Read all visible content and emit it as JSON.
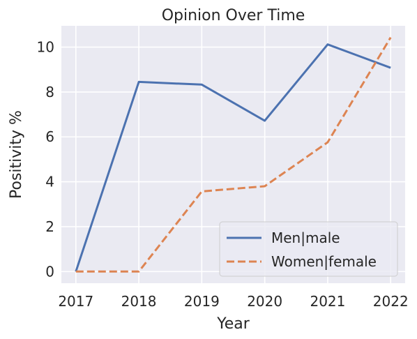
{
  "chart_data": {
    "type": "line",
    "title": "Opinion Over Time",
    "xlabel": "Year",
    "ylabel": "Positivity %",
    "x": [
      2017,
      2018,
      2019,
      2020,
      2021,
      2022
    ],
    "xlim": [
      2016.77,
      2022.23
    ],
    "ylim": [
      -0.52,
      10.95
    ],
    "yticks": [
      0,
      2,
      4,
      6,
      8,
      10
    ],
    "grid": true,
    "legend_position": "lower-right",
    "series": [
      {
        "name": "Men|male",
        "values": [
          0,
          8.45,
          8.33,
          6.72,
          10.12,
          9.08
        ],
        "color": "#4c72b0",
        "dash": "solid"
      },
      {
        "name": "Women|female",
        "values": [
          0,
          0,
          3.57,
          3.8,
          5.76,
          10.43
        ],
        "color": "#dd8452",
        "dash": "dashed"
      }
    ]
  }
}
